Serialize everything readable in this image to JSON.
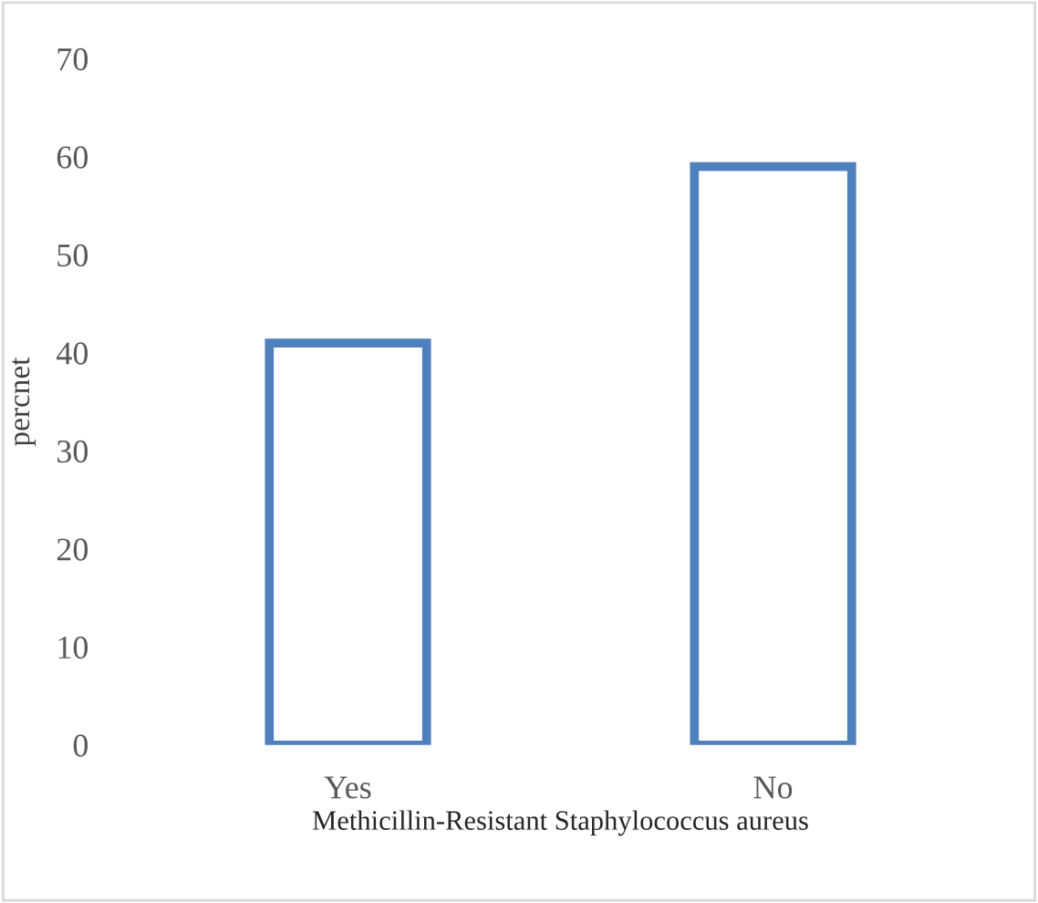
{
  "chart_data": {
    "type": "bar",
    "xlabel": "Methicillin-Resistant Staphylococcus aureus",
    "ylabel": "percnet",
    "categories": [
      "Yes",
      "No"
    ],
    "values": [
      41,
      59
    ],
    "color": "#4f81bd",
    "ylim": [
      0,
      70
    ],
    "yticks": [
      0,
      10,
      20,
      30,
      40,
      50,
      60,
      70
    ],
    "grid": false,
    "legend": false
  }
}
